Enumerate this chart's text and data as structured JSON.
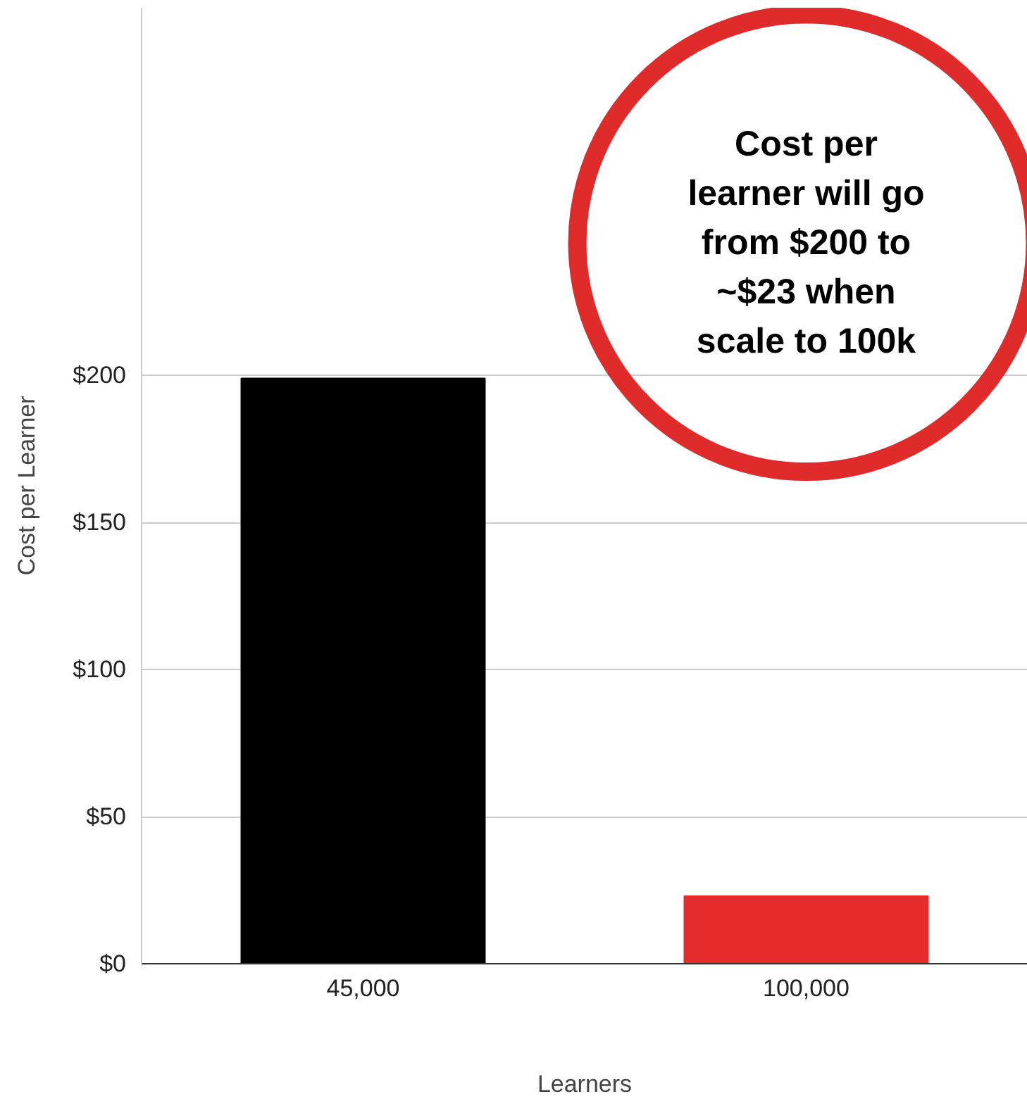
{
  "chart_data": {
    "type": "bar",
    "xlabel": "Learners",
    "ylabel": "Cost per Learner",
    "categories": [
      "45,000",
      "100,000"
    ],
    "values": [
      199,
      23
    ],
    "colors": [
      "#000000",
      "#e52b2b"
    ],
    "ylim": [
      0,
      325
    ],
    "yticks": [
      {
        "value": 0,
        "label": "$0"
      },
      {
        "value": 50,
        "label": "$50"
      },
      {
        "value": 100,
        "label": "$100"
      },
      {
        "value": 150,
        "label": "$150"
      },
      {
        "value": 200,
        "label": "$200"
      }
    ],
    "grid": "y",
    "annotations": [
      "Cost per\nlearner will go\nfrom $200 to\n~$23 when\nscale to 100k"
    ]
  }
}
